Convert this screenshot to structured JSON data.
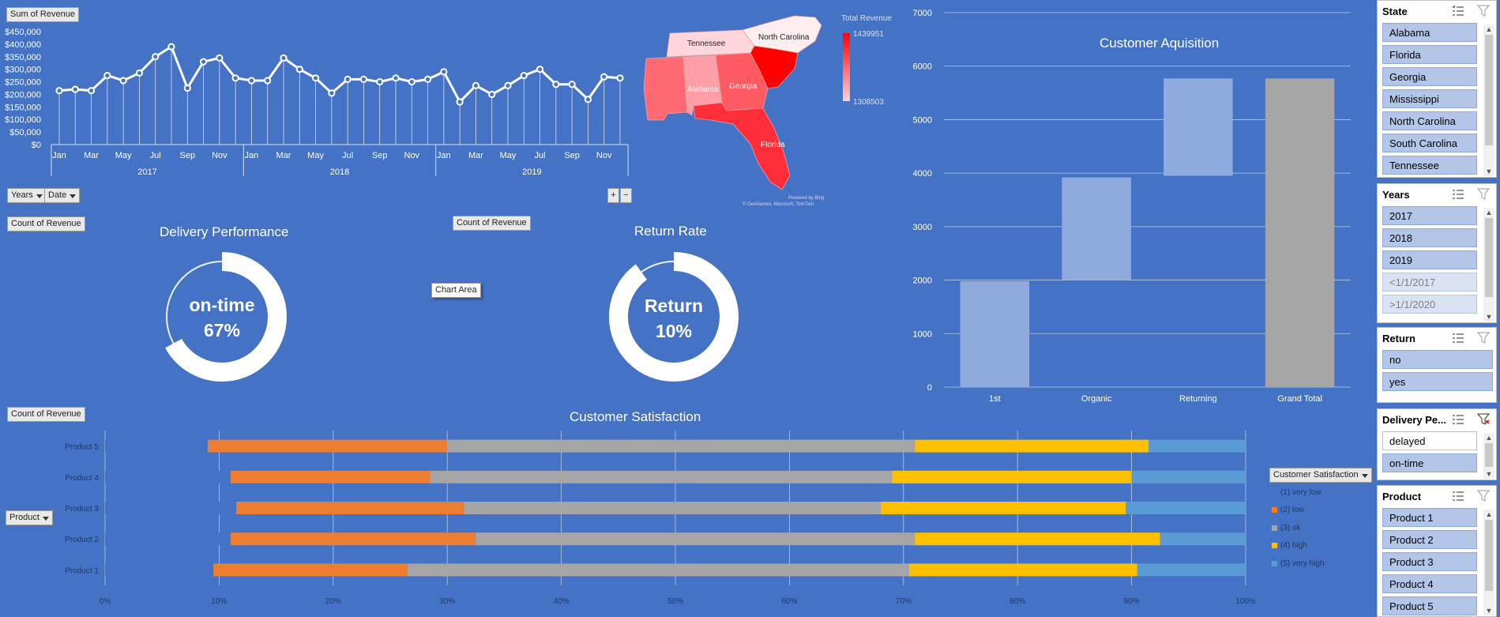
{
  "buttons": {
    "sum_revenue": "Sum of Revenue",
    "years": "Years",
    "date": "Date",
    "count_revenue_1": "Count of Revenue",
    "count_revenue_2": "Count of Revenue",
    "count_revenue_3": "Count of Revenue",
    "chart_area": "Chart Area",
    "product": "Product",
    "customer_satisfaction": "Customer Satisfaction",
    "plus": "+",
    "minus": "−"
  },
  "line_chart": {
    "y_ticks": [
      "$450,000",
      "$400,000",
      "$350,000",
      "$300,000",
      "$250,000",
      "$200,000",
      "$150,000",
      "$100,000",
      "$50,000",
      "$0"
    ],
    "x_month_labels": [
      "Jan",
      "Mar",
      "May",
      "Jul",
      "Sep",
      "Nov",
      "Jan",
      "Mar",
      "May",
      "Jul",
      "Sep",
      "Nov",
      "Jan",
      "Mar",
      "May",
      "Jul",
      "Sep",
      "Nov"
    ],
    "year_labels": [
      "2017",
      "2018",
      "2019"
    ],
    "values": [
      215000,
      220000,
      215000,
      275000,
      255000,
      285000,
      350000,
      390000,
      225000,
      330000,
      345000,
      265000,
      255000,
      255000,
      345000,
      300000,
      265000,
      205000,
      260000,
      260000,
      250000,
      265000,
      250000,
      260000,
      290000,
      170000,
      235000,
      200000,
      235000,
      275000,
      300000,
      240000,
      240000,
      180000,
      270000,
      265000
    ],
    "ymax": 450000
  },
  "map": {
    "legend_title": "Total Revenue",
    "legend_max": "1439951",
    "legend_min": "1308503",
    "states": [
      "Tennessee",
      "North Carolina",
      "Alabama",
      "Georgia",
      "Florida"
    ],
    "credit_1": "Powered by Bing",
    "credit_2": "© GeoNames, Microsoft, TomTom"
  },
  "delivery": {
    "title": "Delivery Performance",
    "label": "on-time",
    "percent_text": "67%",
    "percent": 67
  },
  "return_rate": {
    "title": "Return Rate",
    "label": "Return",
    "percent_text": "10%",
    "percent": 10
  },
  "acquisition": {
    "title": "Customer Aquisition",
    "y_ticks": [
      "7000",
      "6000",
      "5000",
      "4000",
      "3000",
      "2000",
      "1000",
      "0"
    ],
    "categories": [
      "1st",
      "Organic",
      "Returning",
      "Grand Total"
    ],
    "bars": [
      {
        "from": 0,
        "to": 1980,
        "color": "#8faadc"
      },
      {
        "from": 2000,
        "to": 3920,
        "color": "#8faadc"
      },
      {
        "from": 3950,
        "to": 5770,
        "color": "#8faadc"
      },
      {
        "from": 0,
        "to": 5770,
        "color": "#a5a5a5"
      }
    ],
    "ymax": 7000
  },
  "satisfaction": {
    "title": "Customer Satisfaction",
    "products": [
      "Product 5",
      "Product 4",
      "Product 3",
      "Product 2",
      "Product 1"
    ],
    "x_ticks": [
      "0%",
      "10%",
      "20%",
      "30%",
      "40%",
      "50%",
      "60%",
      "70%",
      "80%",
      "90%",
      "100%"
    ],
    "legend": [
      "(1) very low",
      "(2) low",
      "(3) ok",
      "(4) high",
      "(5) very high"
    ],
    "colors": [
      "#4472c4",
      "#ed7d31",
      "#a5a5a5",
      "#ffc000",
      "#5b9bd5"
    ],
    "rows": [
      [
        9,
        21,
        41,
        20.5,
        8.5
      ],
      [
        11,
        17.5,
        40.5,
        21,
        10
      ],
      [
        11.5,
        20,
        36.5,
        21.5,
        10.5
      ],
      [
        11,
        21.5,
        38.5,
        21.5,
        7.5
      ],
      [
        9.5,
        17,
        44,
        20,
        9.5
      ]
    ]
  },
  "slicers": {
    "state": {
      "title": "State",
      "items": [
        "Alabama",
        "Florida",
        "Georgia",
        "Mississippi",
        "North Carolina",
        "South Carolina",
        "Tennessee"
      ]
    },
    "years": {
      "title": "Years",
      "items": [
        "2017",
        "2018",
        "2019",
        "<1/1/2017",
        ">1/1/2020"
      ]
    },
    "return": {
      "title": "Return",
      "items": [
        "no",
        "yes"
      ]
    },
    "delivery": {
      "title": "Delivery Pe...",
      "items": [
        "delayed",
        "on-time"
      ]
    },
    "product": {
      "title": "Product",
      "items": [
        "Product 1",
        "Product 2",
        "Product 3",
        "Product 4",
        "Product 5"
      ]
    }
  }
}
